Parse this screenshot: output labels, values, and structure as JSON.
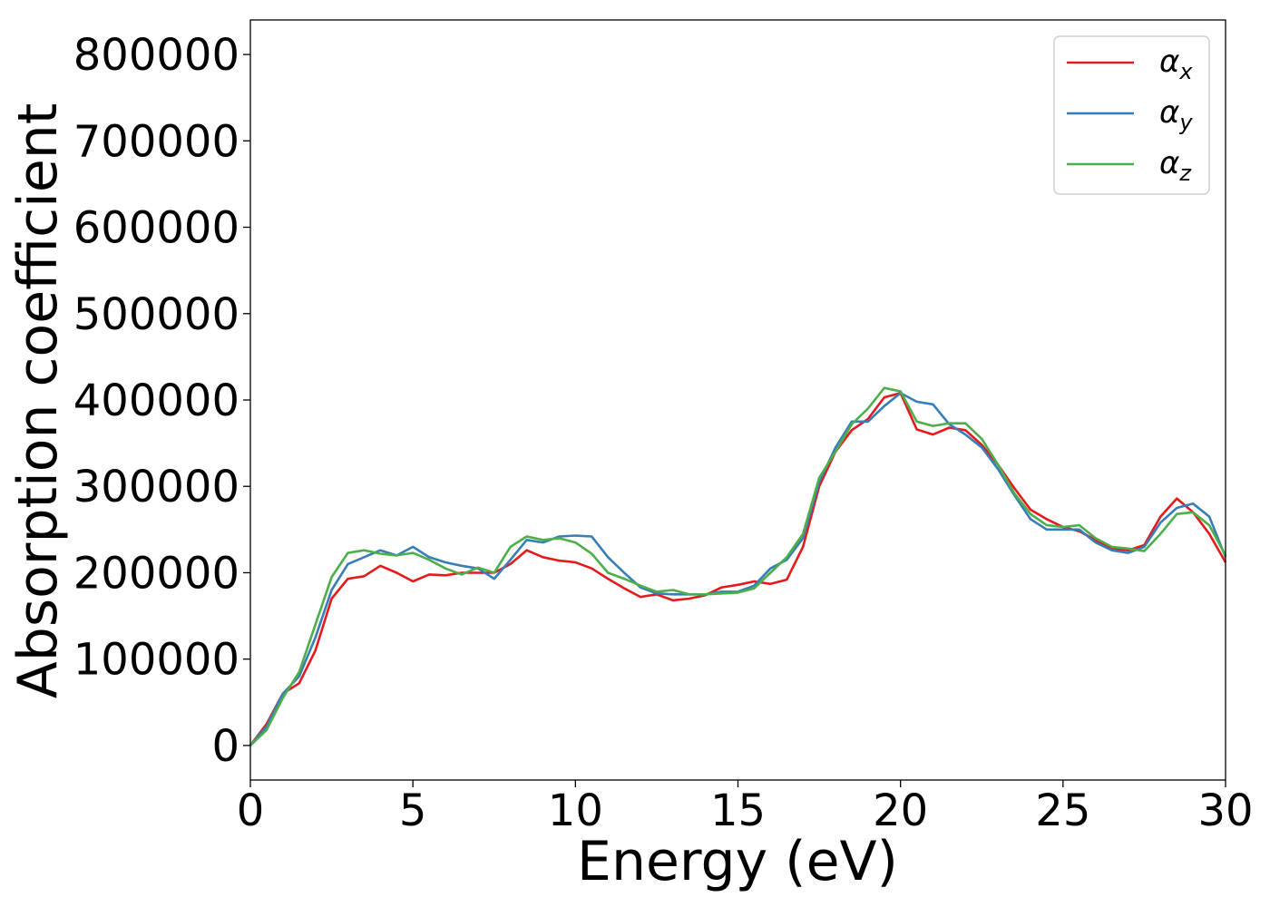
{
  "chart_data": {
    "type": "line",
    "title": "",
    "xlabel": "Energy (eV)",
    "ylabel": "Absorption coefficient",
    "xlim": [
      0,
      30
    ],
    "ylim": [
      -40000,
      840000
    ],
    "xticks": [
      0,
      5,
      10,
      15,
      20,
      25,
      30
    ],
    "yticks": [
      0,
      100000,
      200000,
      300000,
      400000,
      500000,
      600000,
      700000,
      800000
    ],
    "grid": false,
    "legend_position": "top-right",
    "series": [
      {
        "name": "α_x",
        "label_main": "α",
        "label_sub": "x",
        "color": "#e41a1c",
        "x": [
          0,
          0.5,
          1.0,
          1.5,
          2.0,
          2.5,
          3.0,
          3.5,
          4.0,
          4.5,
          5.0,
          5.5,
          6.0,
          6.5,
          7.0,
          7.5,
          8.0,
          8.5,
          9.0,
          9.5,
          10.0,
          10.5,
          11.0,
          11.5,
          12.0,
          12.5,
          13.0,
          13.5,
          14.0,
          14.5,
          15.0,
          15.5,
          16.0,
          16.5,
          17.0,
          17.5,
          18.0,
          18.5,
          19.0,
          19.5,
          20.0,
          20.5,
          21.0,
          21.5,
          22.0,
          22.5,
          23.0,
          23.5,
          24.0,
          24.5,
          25.0,
          25.5,
          26.0,
          26.5,
          27.0,
          27.5,
          28.0,
          28.5,
          29.0,
          29.5,
          30.0
        ],
        "y": [
          0,
          25000,
          60000,
          72000,
          110000,
          170000,
          193000,
          196000,
          208000,
          200000,
          190000,
          198000,
          197000,
          200000,
          200000,
          200000,
          210000,
          226000,
          218000,
          214000,
          212000,
          205000,
          193000,
          182000,
          172000,
          175000,
          168000,
          170000,
          174000,
          183000,
          186000,
          190000,
          187000,
          192000,
          230000,
          300000,
          340000,
          365000,
          378000,
          403000,
          408000,
          366000,
          360000,
          368000,
          365000,
          348000,
          325000,
          298000,
          273000,
          262000,
          253000,
          248000,
          238000,
          228000,
          226000,
          232000,
          265000,
          286000,
          270000,
          245000,
          212000
        ]
      },
      {
        "name": "α_y",
        "label_main": "α",
        "label_sub": "y",
        "color": "#377eb8",
        "x": [
          0,
          0.5,
          1.0,
          1.5,
          2.0,
          2.5,
          3.0,
          3.5,
          4.0,
          4.5,
          5.0,
          5.5,
          6.0,
          6.5,
          7.0,
          7.5,
          8.0,
          8.5,
          9.0,
          9.5,
          10.0,
          10.5,
          11.0,
          11.5,
          12.0,
          12.5,
          13.0,
          13.5,
          14.0,
          14.5,
          15.0,
          15.5,
          16.0,
          16.5,
          17.0,
          17.5,
          18.0,
          18.5,
          19.0,
          19.5,
          20.0,
          20.5,
          21.0,
          21.5,
          22.0,
          22.5,
          23.0,
          23.5,
          24.0,
          24.5,
          25.0,
          25.5,
          26.0,
          26.5,
          27.0,
          27.5,
          28.0,
          28.5,
          29.0,
          29.5,
          30.0
        ],
        "y": [
          0,
          22000,
          60000,
          80000,
          125000,
          180000,
          210000,
          218000,
          226000,
          220000,
          230000,
          218000,
          212000,
          208000,
          205000,
          193000,
          215000,
          238000,
          235000,
          242000,
          243000,
          242000,
          218000,
          200000,
          183000,
          176000,
          175000,
          175000,
          175000,
          178000,
          178000,
          185000,
          205000,
          215000,
          240000,
          305000,
          345000,
          375000,
          375000,
          393000,
          408000,
          398000,
          395000,
          372000,
          360000,
          345000,
          320000,
          290000,
          262000,
          250000,
          250000,
          250000,
          235000,
          226000,
          223000,
          230000,
          258000,
          275000,
          280000,
          265000,
          218000
        ]
      },
      {
        "name": "α_z",
        "label_main": "α",
        "label_sub": "z",
        "color": "#4daf4a",
        "x": [
          0,
          0.5,
          1.0,
          1.5,
          2.0,
          2.5,
          3.0,
          3.5,
          4.0,
          4.5,
          5.0,
          5.5,
          6.0,
          6.5,
          7.0,
          7.5,
          8.0,
          8.5,
          9.0,
          9.5,
          10.0,
          10.5,
          11.0,
          11.5,
          12.0,
          12.5,
          13.0,
          13.5,
          14.0,
          14.5,
          15.0,
          15.5,
          16.0,
          16.5,
          17.0,
          17.5,
          18.0,
          18.5,
          19.0,
          19.5,
          20.0,
          20.5,
          21.0,
          21.5,
          22.0,
          22.5,
          23.0,
          23.5,
          24.0,
          24.5,
          25.0,
          25.5,
          26.0,
          26.5,
          27.0,
          27.5,
          28.0,
          28.5,
          29.0,
          29.5,
          30.0
        ],
        "y": [
          0,
          18000,
          55000,
          85000,
          140000,
          195000,
          223000,
          226000,
          222000,
          220000,
          223000,
          215000,
          205000,
          198000,
          206000,
          200000,
          230000,
          242000,
          238000,
          240000,
          235000,
          222000,
          200000,
          193000,
          185000,
          178000,
          180000,
          175000,
          175000,
          176000,
          177000,
          182000,
          200000,
          218000,
          245000,
          310000,
          340000,
          372000,
          390000,
          414000,
          410000,
          375000,
          370000,
          373000,
          373000,
          355000,
          325000,
          292000,
          268000,
          255000,
          253000,
          255000,
          240000,
          230000,
          228000,
          225000,
          245000,
          268000,
          270000,
          255000,
          220000
        ]
      }
    ]
  }
}
